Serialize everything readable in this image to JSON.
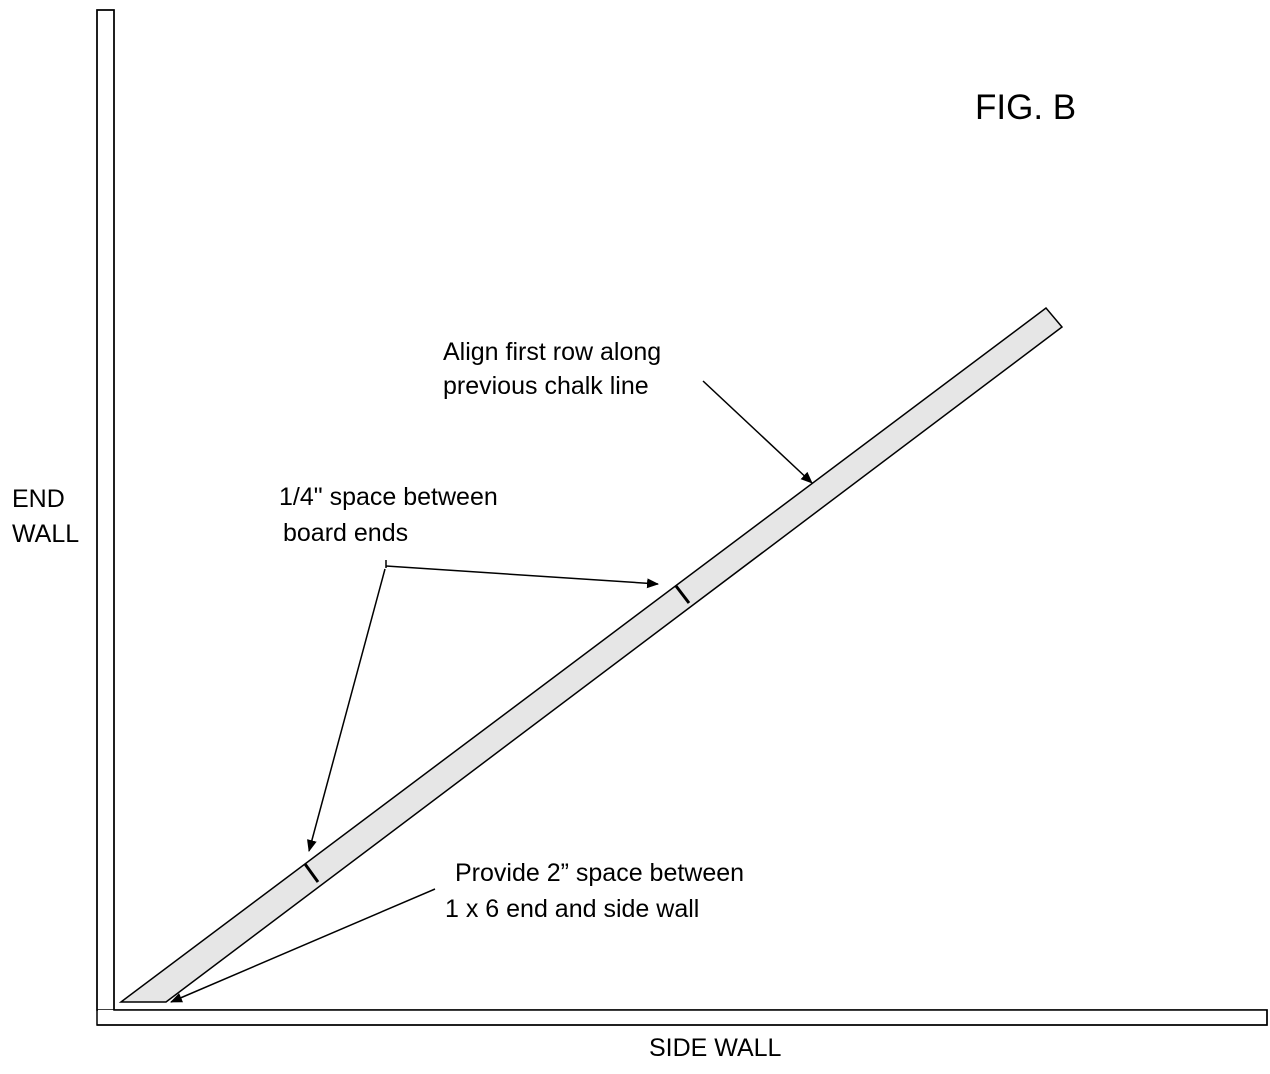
{
  "figure": {
    "title": "FIG. B"
  },
  "walls": {
    "end_wall_line1": "END",
    "end_wall_line2": "WALL",
    "side_wall": "SIDE WALL"
  },
  "callouts": {
    "align": {
      "line1": "Align first row along",
      "line2": "previous chalk line"
    },
    "space": {
      "line1": "1/4\" space between",
      "line2": "board ends"
    },
    "provide": {
      "line1": "Provide 2” space between",
      "line2": "1 x 6 end and side wall"
    }
  },
  "colors": {
    "board_fill": "#e6e6e6",
    "line": "#000000",
    "wall_fill": "#ffffff"
  }
}
